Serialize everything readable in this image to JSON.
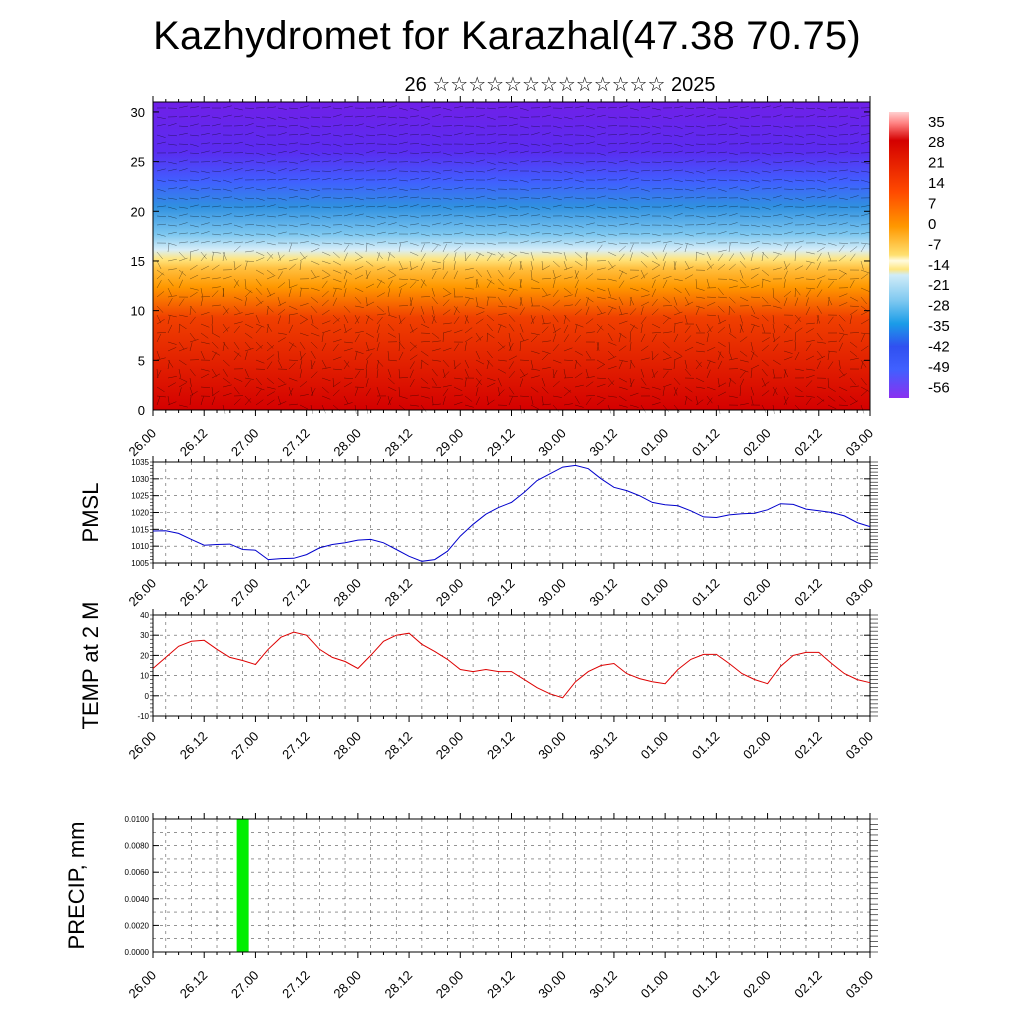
{
  "header": {
    "title": "Kazhydromet for Karazhal(47.38 70.75)",
    "subtitle": "26 ☆☆☆☆☆☆☆☆☆☆☆☆☆ 2025"
  },
  "x_tick_labels": [
    "26.00",
    "26.12",
    "27.00",
    "27.12",
    "28.00",
    "28.12",
    "29.00",
    "29.12",
    "30.00",
    "30.12",
    "01.00",
    "01.12",
    "02.00",
    "02.12",
    "03.00"
  ],
  "chart_data": [
    {
      "type": "heatmap",
      "name": "temperature-cross-section",
      "y_ticks": [
        0,
        5,
        10,
        15,
        20,
        25,
        30
      ],
      "ylim": [
        0,
        31
      ],
      "colorbar_labels": [
        35,
        28,
        21,
        14,
        7,
        0,
        -7,
        -14,
        -21,
        -28,
        -35,
        -42,
        -49,
        -56
      ],
      "colorbar_range": [
        -60,
        38
      ],
      "colors": {
        "hot": "#d40000",
        "warm": "#ff9800",
        "mild": "#ffe680",
        "cool": "#7ec8f0",
        "cold": "#4060ff",
        "frigid": "#7020e8"
      }
    },
    {
      "type": "line",
      "ylabel": "PMSL",
      "y_ticks": [
        1005,
        1010,
        1015,
        1020,
        1025,
        1030,
        1035
      ],
      "ylim": [
        1005,
        1035
      ],
      "color": "#0000cc",
      "x": [
        0,
        3,
        6,
        9,
        12,
        15,
        18,
        21,
        24,
        27,
        30,
        33,
        36,
        39,
        42,
        45,
        48,
        51,
        54,
        57,
        60,
        63,
        66,
        69,
        72,
        75,
        78,
        81,
        84,
        87,
        90,
        93,
        96,
        99,
        102,
        105,
        108,
        111,
        114,
        117,
        120,
        123,
        126,
        129,
        132,
        135,
        138,
        141,
        144,
        147,
        150,
        153,
        156,
        159,
        162,
        165,
        168
      ],
      "values": [
        1014.5,
        1014.6,
        1013.8,
        1012.0,
        1010.3,
        1010.5,
        1010.6,
        1009.0,
        1008.8,
        1006.0,
        1006.3,
        1006.4,
        1007.5,
        1009.5,
        1010.5,
        1011.0,
        1011.8,
        1012.0,
        1011.0,
        1009.0,
        1007.0,
        1005.5,
        1006.0,
        1008.5,
        1013.0,
        1016.5,
        1019.5,
        1021.5,
        1023.0,
        1026.0,
        1029.5,
        1031.5,
        1033.5,
        1034.0,
        1033.0,
        1030.0,
        1027.5,
        1026.5,
        1025.0,
        1023.0,
        1022.3,
        1022.0,
        1020.5,
        1018.7,
        1018.5,
        1019.3,
        1019.6,
        1019.8,
        1020.8,
        1022.6,
        1022.4,
        1021.0,
        1020.5,
        1020.0,
        1019.0,
        1017.0,
        1015.8
      ]
    },
    {
      "type": "line",
      "ylabel": "TEMP at 2 M",
      "y_ticks": [
        -10,
        0,
        10,
        20,
        30,
        40
      ],
      "ylim": [
        -10,
        40
      ],
      "color": "#dd0000",
      "x": [
        0,
        3,
        6,
        9,
        12,
        15,
        18,
        21,
        24,
        27,
        30,
        33,
        36,
        39,
        42,
        45,
        48,
        51,
        54,
        57,
        60,
        63,
        66,
        69,
        72,
        75,
        78,
        81,
        84,
        87,
        90,
        93,
        96,
        99,
        102,
        105,
        108,
        111,
        114,
        117,
        120,
        123,
        126,
        129,
        132,
        135,
        138,
        141,
        144,
        147,
        150,
        153,
        156,
        159,
        162,
        165,
        168
      ],
      "values": [
        13.5,
        19,
        24.5,
        27,
        27.5,
        23,
        19,
        17.5,
        15.5,
        23,
        29,
        31.5,
        30,
        23,
        19,
        17,
        13.5,
        20,
        27,
        30,
        31,
        25.5,
        22,
        18,
        13,
        12,
        13,
        12,
        12,
        8,
        4,
        1,
        -1,
        7,
        12,
        15,
        16,
        11,
        8.5,
        7,
        6,
        13,
        18,
        20.5,
        20.5,
        16,
        11,
        8,
        6,
        14.5,
        20,
        21.5,
        21.5,
        16,
        11,
        8,
        6.5
      ]
    },
    {
      "type": "bar",
      "ylabel": "PRECIP, mm",
      "y_tick_labels": [
        "0.0000",
        "0.0020",
        "0.0040",
        "0.0060",
        "0.0080",
        "0.0100"
      ],
      "ylim": [
        0,
        0.01
      ],
      "color": "#00ee00",
      "bars": [
        {
          "x": 21,
          "value": 0.01
        }
      ]
    }
  ]
}
